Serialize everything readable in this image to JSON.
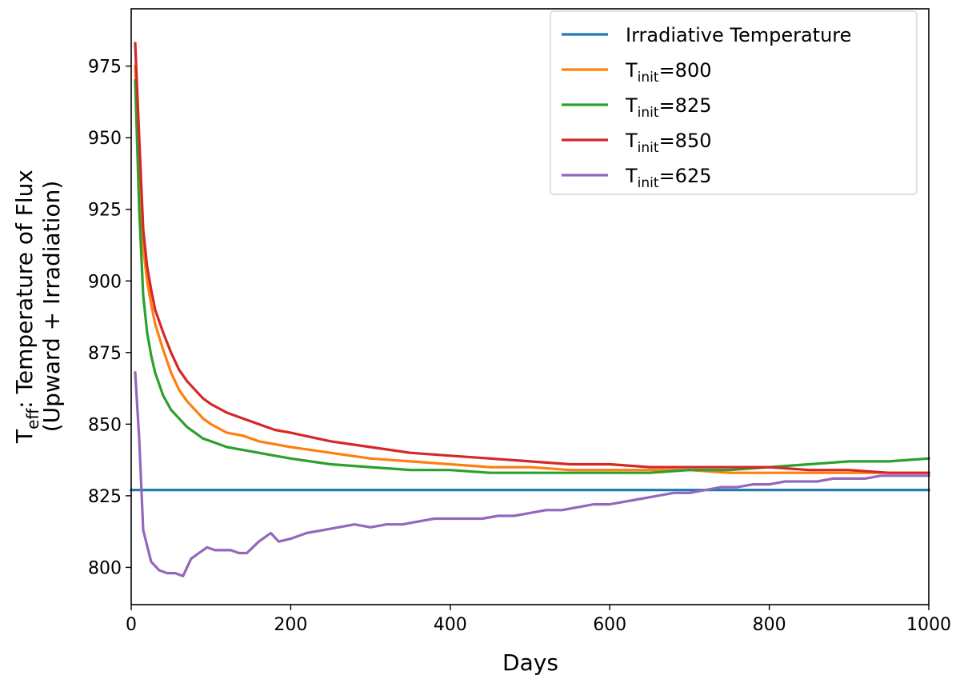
{
  "chart_data": {
    "type": "line",
    "title": "",
    "xlabel": "Days",
    "ylabel": {
      "line1_prefix": "T",
      "line1_sub": "eff",
      "line1_rest": ": Temperature of Flux",
      "line2": "(Upward + Irradiation)"
    },
    "xlim": [
      0,
      1000
    ],
    "ylim": [
      787,
      995
    ],
    "xticks": [
      0,
      200,
      400,
      600,
      800,
      1000
    ],
    "yticks": [
      800,
      825,
      850,
      875,
      900,
      925,
      950,
      975
    ],
    "grid": false,
    "legend_position": "top-right",
    "series": [
      {
        "name": "Irradiative Temperature",
        "label_main": "Irradiative Temperature",
        "label_sub": "",
        "label_rest": "",
        "color": "#1f77b4",
        "x": [
          0,
          1000
        ],
        "y": [
          827,
          827
        ]
      },
      {
        "name": "Tinit=800",
        "label_main": "T",
        "label_sub": "init",
        "label_rest": "=800",
        "color": "#ff7f0e",
        "x": [
          5,
          10,
          15,
          20,
          25,
          30,
          40,
          50,
          60,
          70,
          80,
          90,
          100,
          120,
          140,
          160,
          180,
          200,
          250,
          300,
          350,
          400,
          450,
          500,
          550,
          600,
          650,
          700,
          750,
          800,
          850,
          900,
          950,
          1000
        ],
        "y": [
          975,
          935,
          912,
          900,
          892,
          885,
          876,
          868,
          862,
          858,
          855,
          852,
          850,
          847,
          846,
          844,
          843,
          842,
          840,
          838,
          837,
          836,
          835,
          835,
          834,
          834,
          834,
          834,
          833,
          833,
          833,
          833,
          833,
          833
        ]
      },
      {
        "name": "Tinit=825",
        "label_main": "T",
        "label_sub": "init",
        "label_rest": "=825",
        "color": "#2ca02c",
        "x": [
          5,
          10,
          15,
          20,
          25,
          30,
          40,
          50,
          60,
          70,
          80,
          90,
          100,
          120,
          140,
          160,
          180,
          200,
          250,
          300,
          350,
          400,
          450,
          500,
          550,
          600,
          650,
          700,
          750,
          800,
          850,
          900,
          950,
          1000
        ],
        "y": [
          970,
          925,
          895,
          882,
          874,
          868,
          860,
          855,
          852,
          849,
          847,
          845,
          844,
          842,
          841,
          840,
          839,
          838,
          836,
          835,
          834,
          834,
          833,
          833,
          833,
          833,
          833,
          834,
          834,
          835,
          836,
          837,
          837,
          838
        ]
      },
      {
        "name": "Tinit=850",
        "label_main": "T",
        "label_sub": "init",
        "label_rest": "=850",
        "color": "#d62728",
        "x": [
          5,
          10,
          15,
          20,
          25,
          30,
          40,
          50,
          60,
          70,
          80,
          90,
          100,
          120,
          140,
          160,
          180,
          200,
          250,
          300,
          350,
          400,
          450,
          500,
          550,
          600,
          650,
          700,
          750,
          800,
          850,
          900,
          950,
          1000
        ],
        "y": [
          983,
          950,
          918,
          905,
          897,
          890,
          882,
          875,
          869,
          865,
          862,
          859,
          857,
          854,
          852,
          850,
          848,
          847,
          844,
          842,
          840,
          839,
          838,
          837,
          836,
          836,
          835,
          835,
          835,
          835,
          834,
          834,
          833,
          833
        ]
      },
      {
        "name": "Tinit=625",
        "label_main": "T",
        "label_sub": "init",
        "label_rest": "=625",
        "color": "#9467bd",
        "x": [
          5,
          10,
          15,
          25,
          35,
          45,
          55,
          65,
          75,
          85,
          95,
          105,
          115,
          125,
          135,
          145,
          160,
          175,
          185,
          200,
          220,
          240,
          260,
          280,
          300,
          320,
          340,
          360,
          380,
          400,
          420,
          440,
          460,
          480,
          500,
          520,
          540,
          560,
          580,
          600,
          620,
          640,
          660,
          680,
          700,
          720,
          740,
          760,
          780,
          800,
          820,
          840,
          860,
          880,
          900,
          920,
          940,
          960,
          980,
          1000
        ],
        "y": [
          868,
          845,
          813,
          802,
          799,
          798,
          798,
          797,
          803,
          805,
          807,
          806,
          806,
          806,
          805,
          805,
          809,
          812,
          809,
          810,
          812,
          813,
          814,
          815,
          814,
          815,
          815,
          816,
          817,
          817,
          817,
          817,
          818,
          818,
          819,
          820,
          820,
          821,
          822,
          822,
          823,
          824,
          825,
          826,
          826,
          827,
          828,
          828,
          829,
          829,
          830,
          830,
          830,
          831,
          831,
          831,
          832,
          832,
          832,
          832
        ]
      }
    ]
  }
}
